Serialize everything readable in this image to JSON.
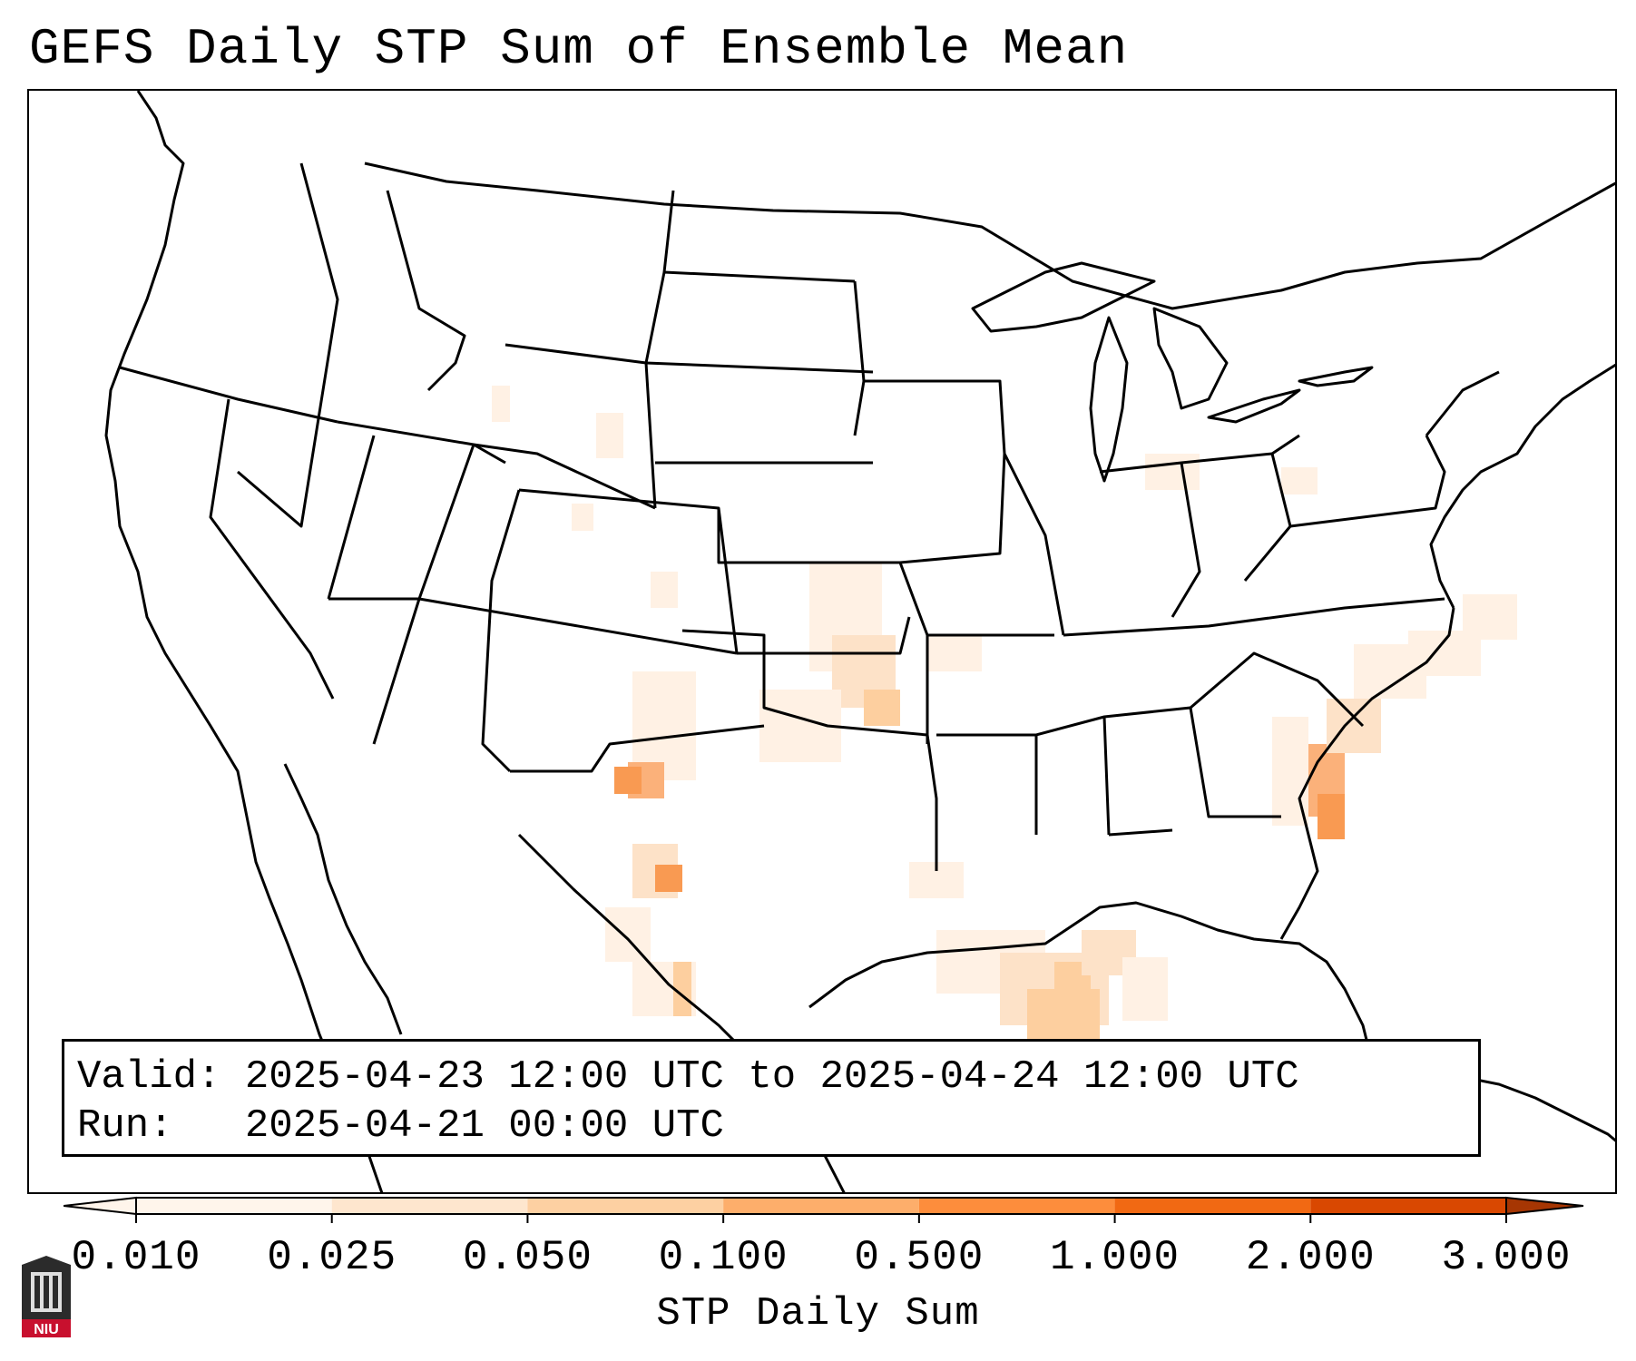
{
  "title": "GEFS Daily STP Sum of Ensemble Mean",
  "info_box": {
    "valid_label": "Valid:",
    "valid_value": "2025-04-23 12:00 UTC to 2025-04-24 12:00 UTC",
    "run_label": "Run:",
    "run_value": "2025-04-21 00:00 UTC"
  },
  "colorbar": {
    "label": "STP Daily Sum",
    "ticks": [
      "0.010",
      "0.025",
      "0.050",
      "0.100",
      "0.500",
      "1.000",
      "2.000",
      "3.000"
    ],
    "colors": [
      "#fff5eb",
      "#fee6ce",
      "#fdd0a2",
      "#fdae6b",
      "#fd8d3c",
      "#f16913",
      "#d94801",
      "#a63603"
    ],
    "extend": "both"
  },
  "logo": {
    "text": "NIU",
    "accent": "#c8102e"
  },
  "stp_field_colors": {
    "light": "#fff1e4",
    "low": "#fde2c8",
    "mid": "#fdcf9f",
    "high": "#fbb17a",
    "peak": "#f99a52"
  }
}
